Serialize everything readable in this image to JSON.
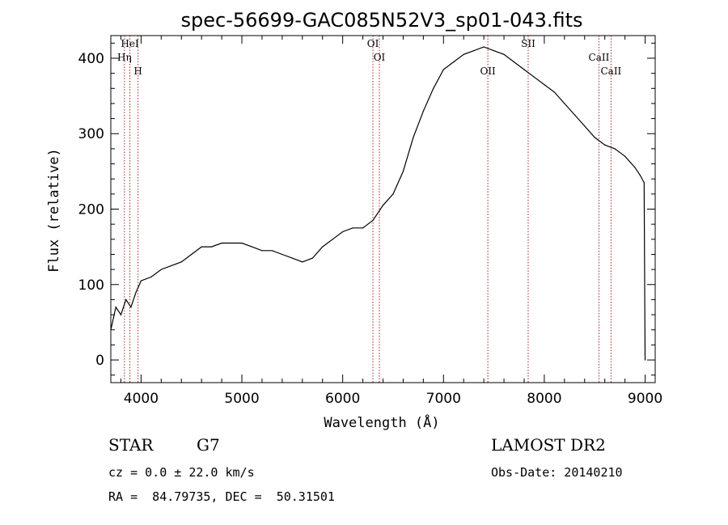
{
  "chart_data": {
    "type": "line",
    "title": "spec-56699-GAC085N52V3_sp01-043.fits",
    "xlabel": "Wavelength (Å)",
    "ylabel": "Flux (relative)",
    "xlim": [
      3700,
      9100
    ],
    "ylim": [
      -30,
      430
    ],
    "x_ticks": [
      4000,
      5000,
      6000,
      7000,
      8000,
      9000
    ],
    "y_ticks": [
      0,
      100,
      200,
      300,
      400
    ],
    "grid": false,
    "series": [
      {
        "x": [
          3700,
          3750,
          3800,
          3850,
          3900,
          3950,
          4000,
          4100,
          4200,
          4300,
          4400,
          4500,
          4600,
          4700,
          4800,
          4900,
          5000,
          5100,
          5200,
          5300,
          5400,
          5500,
          5600,
          5700,
          5800,
          5900,
          6000,
          6100,
          6200,
          6300,
          6400,
          6500,
          6600,
          6700,
          6800,
          6900,
          7000,
          7100,
          7200,
          7300,
          7400,
          7500,
          7600,
          7700,
          7800,
          7900,
          8000,
          8100,
          8200,
          8300,
          8400,
          8500,
          8600,
          8700,
          8800,
          8900,
          8950,
          8990,
          9000
        ],
        "y": [
          40,
          70,
          60,
          80,
          70,
          90,
          105,
          110,
          120,
          125,
          130,
          140,
          150,
          150,
          155,
          155,
          155,
          150,
          145,
          145,
          140,
          135,
          130,
          135,
          150,
          160,
          170,
          175,
          175,
          185,
          205,
          220,
          250,
          295,
          330,
          360,
          385,
          395,
          405,
          410,
          415,
          410,
          405,
          395,
          385,
          375,
          365,
          355,
          340,
          325,
          310,
          295,
          285,
          280,
          270,
          255,
          245,
          235,
          0
        ]
      }
    ],
    "lines": [
      {
        "label": "HeI",
        "x": 3889
      },
      {
        "label": "Hη",
        "x": 3835
      },
      {
        "label": "H",
        "x": 3970
      },
      {
        "label": "OI",
        "x": 6300
      },
      {
        "label": "OI",
        "x": 6364
      },
      {
        "label": "OII",
        "x": 7440
      },
      {
        "label": "SII",
        "x": 7840
      },
      {
        "label": "CaII",
        "x": 8542
      },
      {
        "label": "CaII",
        "x": 8662
      }
    ]
  },
  "info": {
    "star": "STAR",
    "subclass": "G7",
    "cz": "cz = 0.0 ± 22.0 km/s",
    "radec": "RA =  84.79735, DEC =  50.31501",
    "survey": "LAMOST DR2",
    "obsdate": "Obs-Date: 20140210"
  },
  "colors": {
    "spectrum": "#000000",
    "line_marker": "#b22222"
  }
}
